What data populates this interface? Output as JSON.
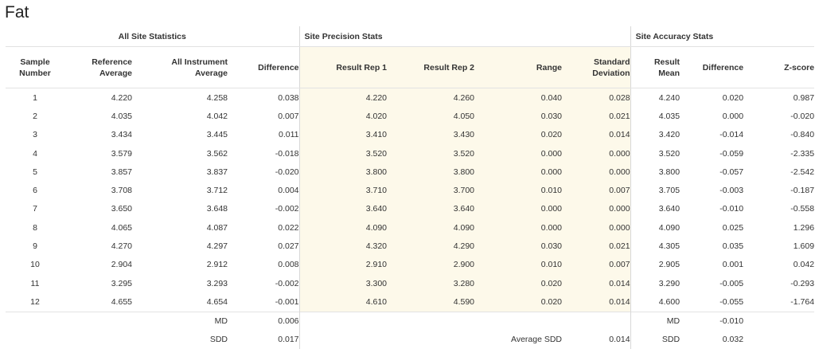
{
  "page_title": "Fat",
  "groups": {
    "all_site": "All Site Statistics",
    "precision": "Site Precision Stats",
    "accuracy": "Site Accuracy Stats"
  },
  "columns": [
    [
      "Sample",
      "Number"
    ],
    [
      "Reference",
      "Average"
    ],
    [
      "All Instrument",
      "Average"
    ],
    [
      "Difference"
    ],
    [
      "Result Rep 1"
    ],
    [
      "Result Rep 2"
    ],
    [
      "Range"
    ],
    [
      "Standard",
      "Deviation"
    ],
    [
      "Result",
      "Mean"
    ],
    [
      "Difference"
    ],
    [
      "Z-score"
    ]
  ],
  "rows": [
    [
      "1",
      "4.220",
      "4.258",
      "0.038",
      "4.220",
      "4.260",
      "0.040",
      "0.028",
      "4.240",
      "0.020",
      "0.987"
    ],
    [
      "2",
      "4.035",
      "4.042",
      "0.007",
      "4.020",
      "4.050",
      "0.030",
      "0.021",
      "4.035",
      "0.000",
      "-0.020"
    ],
    [
      "3",
      "3.434",
      "3.445",
      "0.011",
      "3.410",
      "3.430",
      "0.020",
      "0.014",
      "3.420",
      "-0.014",
      "-0.840"
    ],
    [
      "4",
      "3.579",
      "3.562",
      "-0.018",
      "3.520",
      "3.520",
      "0.000",
      "0.000",
      "3.520",
      "-0.059",
      "-2.335"
    ],
    [
      "5",
      "3.857",
      "3.837",
      "-0.020",
      "3.800",
      "3.800",
      "0.000",
      "0.000",
      "3.800",
      "-0.057",
      "-2.542"
    ],
    [
      "6",
      "3.708",
      "3.712",
      "0.004",
      "3.710",
      "3.700",
      "0.010",
      "0.007",
      "3.705",
      "-0.003",
      "-0.187"
    ],
    [
      "7",
      "3.650",
      "3.648",
      "-0.002",
      "3.640",
      "3.640",
      "0.000",
      "0.000",
      "3.640",
      "-0.010",
      "-0.558"
    ],
    [
      "8",
      "4.065",
      "4.087",
      "0.022",
      "4.090",
      "4.090",
      "0.000",
      "0.000",
      "4.090",
      "0.025",
      "1.296"
    ],
    [
      "9",
      "4.270",
      "4.297",
      "0.027",
      "4.320",
      "4.290",
      "0.030",
      "0.021",
      "4.305",
      "0.035",
      "1.609"
    ],
    [
      "10",
      "2.904",
      "2.912",
      "0.008",
      "2.910",
      "2.900",
      "0.010",
      "0.007",
      "2.905",
      "0.001",
      "0.042"
    ],
    [
      "11",
      "3.295",
      "3.293",
      "-0.002",
      "3.300",
      "3.280",
      "0.020",
      "0.014",
      "3.290",
      "-0.005",
      "-0.293"
    ],
    [
      "12",
      "4.655",
      "4.654",
      "-0.001",
      "4.610",
      "4.590",
      "0.020",
      "0.014",
      "4.600",
      "-0.055",
      "-1.764"
    ]
  ],
  "footer": {
    "md_label": "MD",
    "md_value": "0.006",
    "sdd_label": "SDD",
    "sdd_value": "0.017",
    "avg_sdd_label": "Average SDD",
    "avg_sdd_value": "0.014",
    "acc_md_label": "MD",
    "acc_md_value": "-0.010",
    "acc_sdd_label": "SDD",
    "acc_sdd_value": "0.032"
  },
  "colors": {
    "precision_background": "#fdf9ea",
    "divider": "#d8d8d8",
    "text": "#333333"
  }
}
